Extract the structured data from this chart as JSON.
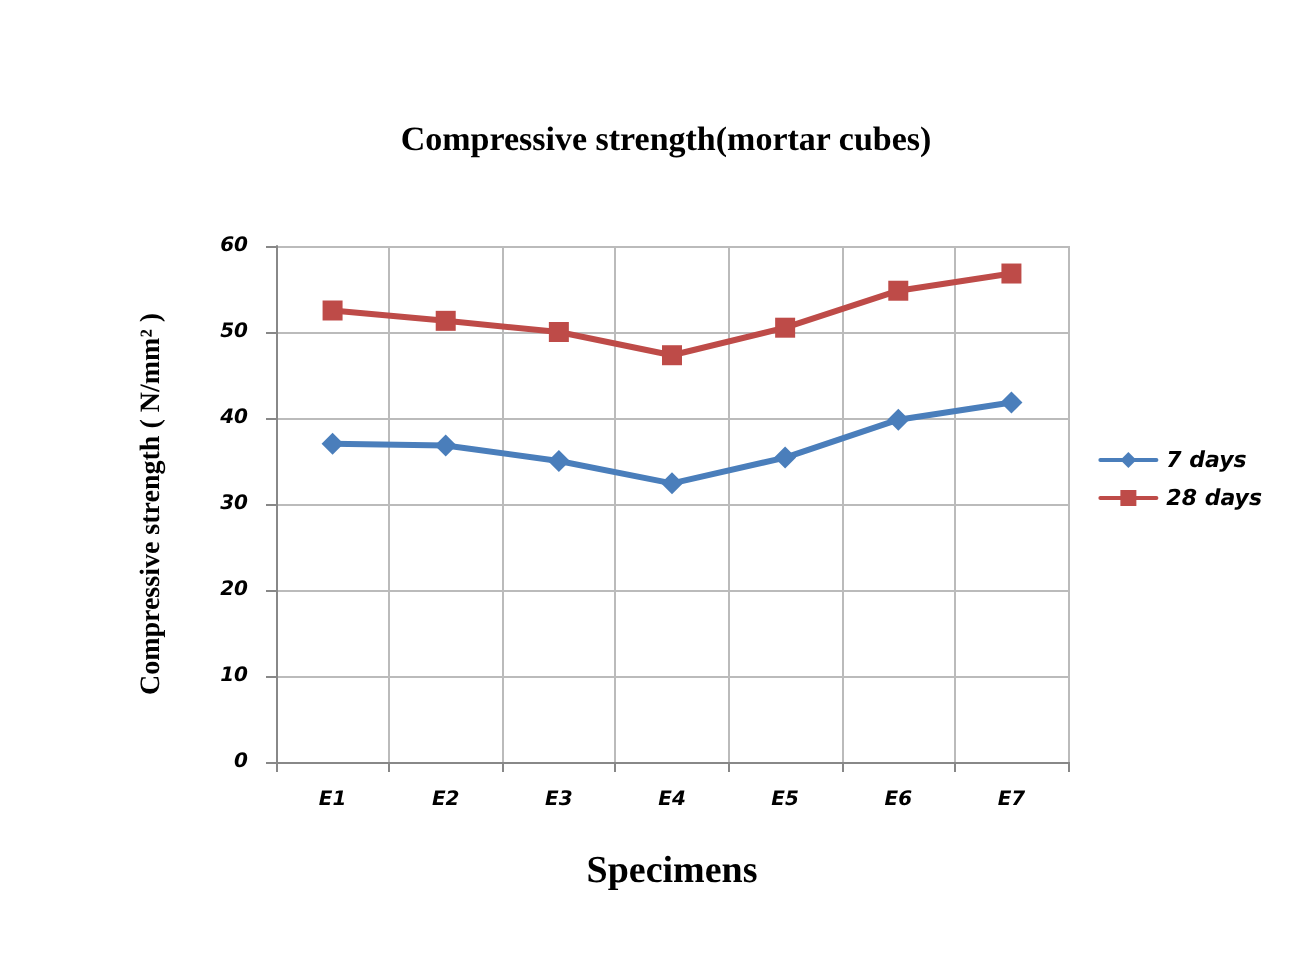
{
  "chart_data": {
    "type": "line",
    "title": "Compressive strength(mortar cubes)",
    "xlabel": "Specimens",
    "ylabel": "Compressive strength ( N/mm² )",
    "categories": [
      "E1",
      "E2",
      "E3",
      "E4",
      "E5",
      "E6",
      "E7"
    ],
    "series": [
      {
        "name": "7 days",
        "color": "#4a7ebb",
        "marker": "diamond",
        "values": [
          37.0,
          36.8,
          35.0,
          32.4,
          35.4,
          39.8,
          41.8
        ]
      },
      {
        "name": "28 days",
        "color": "#be4b48",
        "marker": "square",
        "values": [
          52.5,
          51.3,
          50.0,
          47.3,
          50.5,
          54.8,
          56.8
        ]
      }
    ],
    "ylim": [
      0,
      60
    ],
    "yticks": [
      0,
      10,
      20,
      30,
      40,
      50,
      60
    ],
    "grid": true,
    "legend": "right",
    "line_style": "solid"
  }
}
